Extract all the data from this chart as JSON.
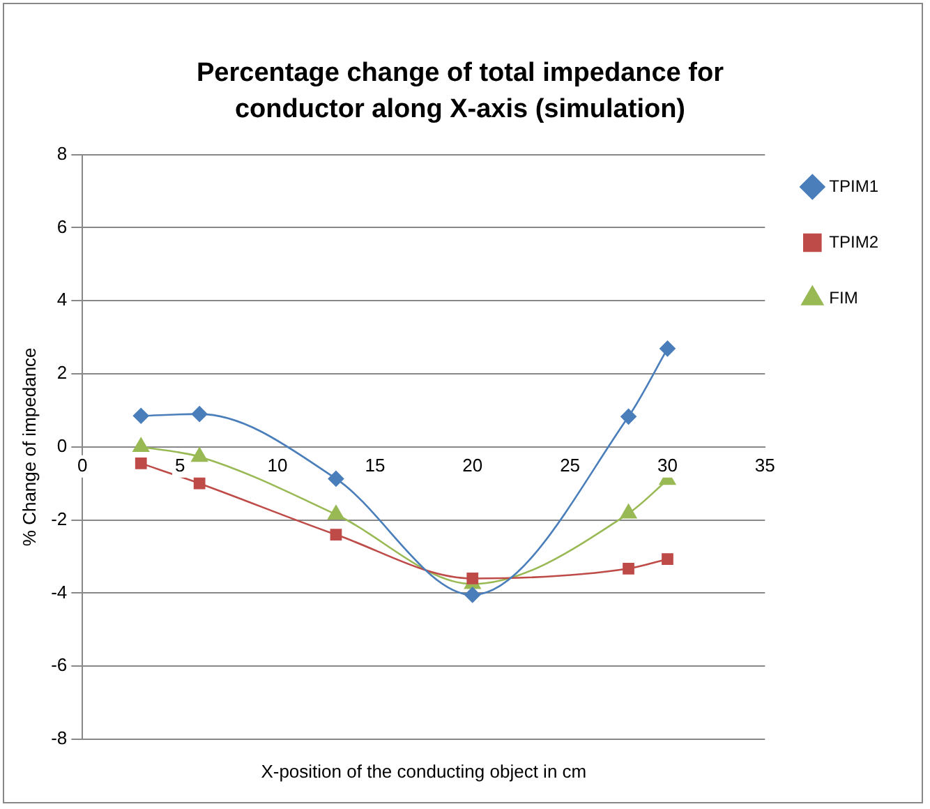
{
  "chart_data": {
    "type": "line",
    "title": "Percentage change of total impedance for conductor along X-axis (simulation)",
    "xlabel": "X-position of the conducting object in cm",
    "ylabel": "% Change of impedance",
    "series": [
      {
        "name": "TPIM1",
        "color": "#4a7ebb",
        "marker": "diamond",
        "x": [
          3,
          6,
          13,
          20,
          28,
          30
        ],
        "values": [
          0.85,
          0.9,
          -0.87,
          -4.05,
          0.83,
          2.69
        ]
      },
      {
        "name": "TPIM2",
        "color": "#be4b48",
        "marker": "square",
        "x": [
          3,
          6,
          13,
          20,
          28,
          30
        ],
        "values": [
          -0.45,
          -1.0,
          -2.4,
          -3.6,
          -3.33,
          -3.07
        ]
      },
      {
        "name": "FIM",
        "color": "#98b954",
        "marker": "triangle",
        "x": [
          3,
          6,
          13,
          20,
          28,
          30
        ],
        "values": [
          0,
          -0.27,
          -1.85,
          -3.75,
          -1.82,
          -0.9
        ]
      }
    ],
    "xlim": [
      0,
      35
    ],
    "xticks": [
      0,
      5,
      10,
      15,
      20,
      25,
      30,
      35
    ],
    "ylim": [
      -8,
      8
    ],
    "yticks": [
      -8,
      -6,
      -4,
      -2,
      0,
      2,
      4,
      6,
      8
    ],
    "grid": "y",
    "legend": "top right"
  }
}
